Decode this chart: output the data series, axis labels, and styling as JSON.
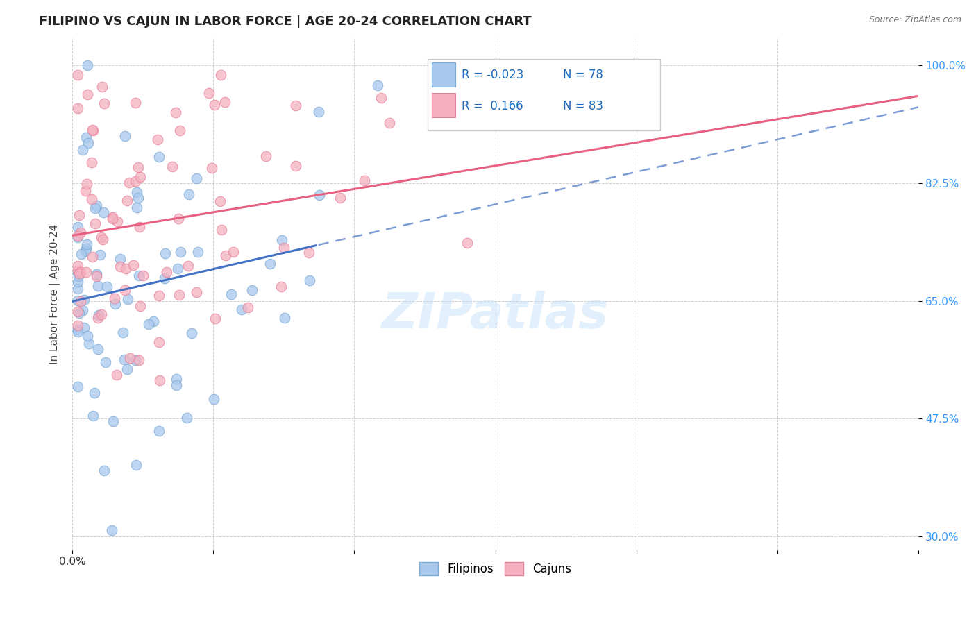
{
  "title": "FILIPINO VS CAJUN IN LABOR FORCE | AGE 20-24 CORRELATION CHART",
  "source": "Source: ZipAtlas.com",
  "ylabel": "In Labor Force | Age 20-24",
  "xlim": [
    0.0,
    0.3
  ],
  "ylim": [
    0.28,
    1.04
  ],
  "xtick_pos": [
    0.0,
    0.05,
    0.1,
    0.15,
    0.2,
    0.25,
    0.3
  ],
  "xtick_labels": [
    "0.0%",
    "",
    "",
    "",
    "",
    "",
    ""
  ],
  "yticks": [
    0.3,
    0.475,
    0.65,
    0.825,
    1.0
  ],
  "ytick_labels": [
    "30.0%",
    "47.5%",
    "65.0%",
    "82.5%",
    "100.0%"
  ],
  "filipino_color": "#a8c8ee",
  "cajun_color": "#f4b0c0",
  "filipino_edge": "#7aaad4",
  "cajun_edge": "#e88099",
  "r_filipino": -0.023,
  "n_filipino": 78,
  "r_cajun": 0.166,
  "n_cajun": 83,
  "line_color_filipino": "#4472c4",
  "line_color_cajun": "#e86080",
  "legend_r_color": "#1a6bbf",
  "watermark": "ZIPatlas",
  "background_color": "#ffffff",
  "legend_box_color": "#f5f5f5",
  "title_fontsize": 13,
  "axis_label_fontsize": 11,
  "tick_fontsize": 11,
  "legend_fontsize": 12
}
